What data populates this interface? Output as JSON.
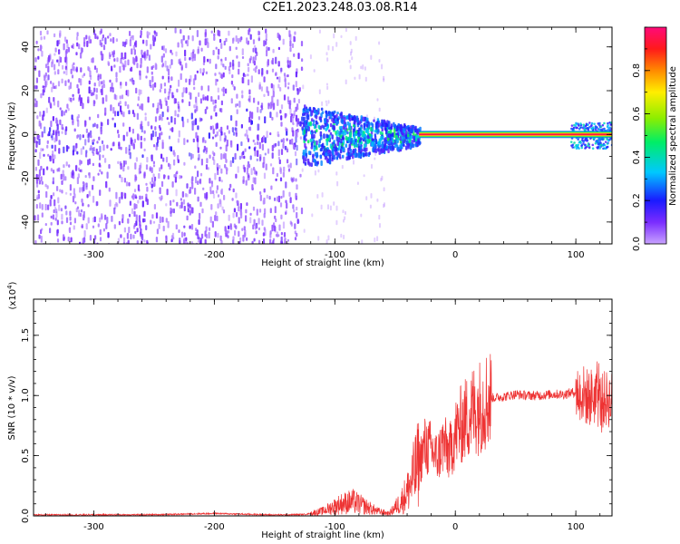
{
  "title": "C2E1.2023.248.03.08.R14",
  "colors": {
    "signal": "#ee3333",
    "noise_purple": "#7a2cff",
    "line_band_outer": "#22aa22",
    "line_band_inner": "#dd2244"
  },
  "chart_data": [
    {
      "type": "heatmap",
      "name": "spectrogram",
      "title": "",
      "xlabel": "Height of straight line (km)",
      "ylabel": "Frequency (Hz)",
      "xlim": [
        -350,
        130
      ],
      "ylim": [
        -50,
        49
      ],
      "xticks": [
        -300,
        -200,
        -100,
        0,
        100
      ],
      "yticks": [
        -40,
        -20,
        0,
        20,
        40
      ],
      "grid": false,
      "colorbar": {
        "label": "Normalized spectral amplitude",
        "range": [
          0.0,
          1.0
        ],
        "ticks": [
          "0.0",
          "0.2",
          "0.4",
          "0.6",
          "0.8"
        ],
        "colormap": "rainbow (purple → blue → cyan → green → yellow → red → magenta)"
      },
      "regions": [
        {
          "x_range": [
            -350,
            -128
          ],
          "frequency_spread": [
            -50,
            49
          ],
          "amplitude": 0.05
        },
        {
          "x_range": [
            -128,
            -30
          ],
          "frequency_spread": [
            -12,
            12
          ],
          "amplitude": 0.35
        },
        {
          "x_range": [
            -30,
            95
          ],
          "frequency": 0,
          "amplitude": 0.95
        },
        {
          "x_range": [
            95,
            130
          ],
          "frequency_spread": [
            -5,
            6
          ],
          "amplitude": 0.5
        }
      ]
    },
    {
      "type": "line",
      "name": "snr",
      "title": "",
      "xlabel": "Height of straight line (km)",
      "ylabel": "SNR (10 * v/v)",
      "y_multiplier": "(x10^4)",
      "xlim": [
        -350,
        130
      ],
      "ylim": [
        0,
        18000
      ],
      "xticks": [
        -300,
        -200,
        -100,
        0,
        100
      ],
      "yticks": [
        "0.0",
        "0.5",
        "1.0",
        "1.5"
      ],
      "ytick_values": [
        0,
        5000,
        10000,
        15000
      ],
      "grid": false,
      "series": [
        {
          "x": [
            -350,
            -250,
            -200,
            -150,
            -125,
            -110,
            -95,
            -85,
            -75,
            -65,
            -55,
            -45,
            -40,
            -35,
            -30,
            -25,
            -20,
            -15,
            -10,
            -5,
            0,
            5,
            10,
            15,
            20,
            25,
            30,
            40,
            50,
            60,
            70,
            80,
            90,
            95,
            100,
            105,
            110,
            115,
            120,
            125,
            130
          ],
          "values": [
            80,
            100,
            200,
            80,
            120,
            400,
            1000,
            1200,
            800,
            400,
            200,
            1200,
            2000,
            3200,
            4500,
            5800,
            5500,
            4800,
            6000,
            5200,
            6800,
            7600,
            8200,
            8800,
            9100,
            9600,
            9800,
            9900,
            10100,
            10000,
            10000,
            10100,
            10100,
            10200,
            10300,
            10200,
            9800,
            10000,
            9500,
            9700,
            9600
          ]
        }
      ]
    }
  ]
}
